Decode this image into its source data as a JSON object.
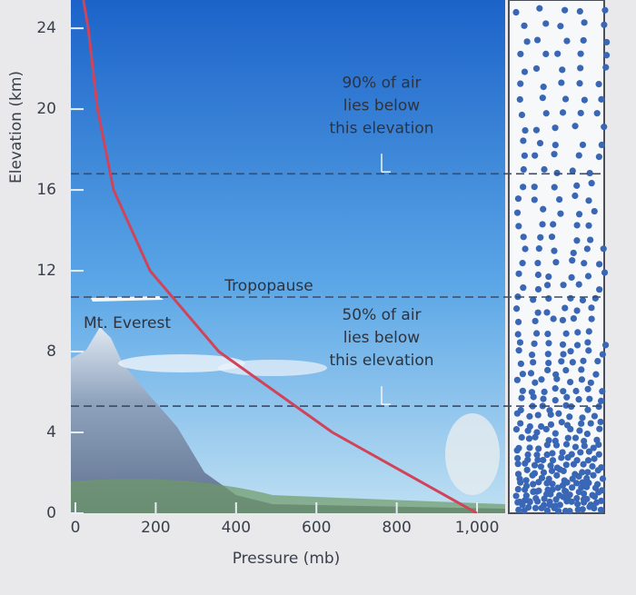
{
  "chart_data": {
    "type": "line",
    "x_label": "Pressure (mb)",
    "y_label": "Elevation (km)",
    "xlim": [
      0,
      1070
    ],
    "ylim": [
      0,
      25.4
    ],
    "xticks": [
      0,
      200,
      400,
      600,
      800,
      {
        "value": 1000,
        "label": "1,000"
      }
    ],
    "yticks": [
      0,
      4,
      8,
      12,
      16,
      20,
      24
    ],
    "series": [
      {
        "color": "#d0445a",
        "x": [
          1000,
          640,
          357,
          186,
          95,
          55,
          32,
          20
        ],
        "values": [
          0,
          4,
          8,
          12,
          16,
          20,
          24,
          25.4
        ]
      }
    ],
    "reference_lines": [
      {
        "y": 16.8,
        "label": [
          "90% of air",
          "lies below",
          "this elevation"
        ]
      },
      {
        "y": 10.7,
        "label": [
          "Tropopause"
        ]
      },
      {
        "y": 5.3,
        "label": [
          "50% of air",
          "lies below",
          "this elevation"
        ]
      }
    ],
    "annotations": [
      "Mt. Everest"
    ]
  }
}
